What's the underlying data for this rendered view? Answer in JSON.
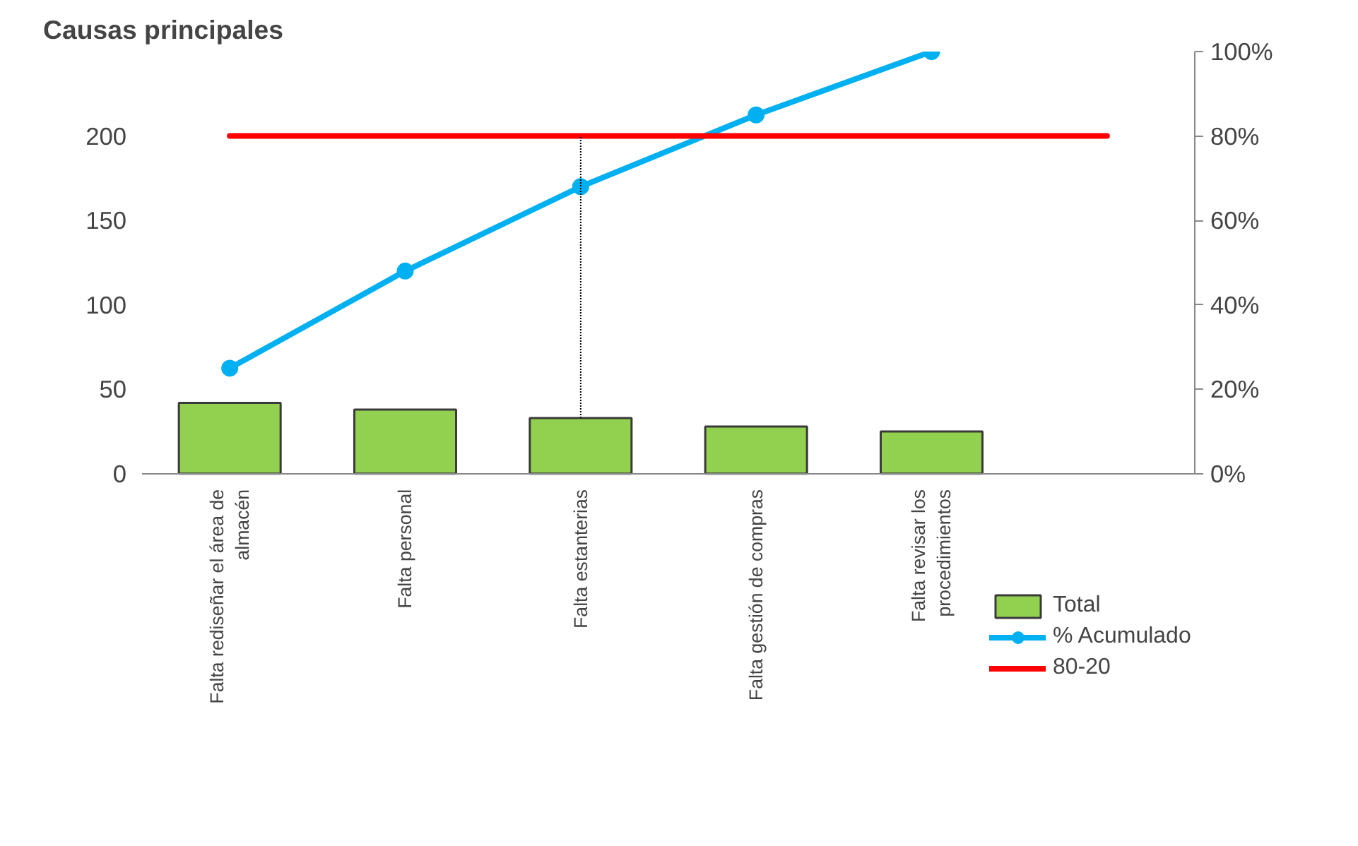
{
  "chart_data": {
    "type": "bar",
    "title": "Causas principales",
    "categories": [
      "Falta rediseñar el área de almacén",
      "Falta personal",
      "Falta estanterias",
      "Falta gestión de compras",
      "Falta revisar los procedimientos",
      null
    ],
    "series": [
      {
        "name": "Total",
        "color": "#92d050",
        "values": [
          42,
          38,
          33,
          28,
          25,
          null
        ]
      },
      {
        "name": "% Acumulado",
        "type": "line",
        "axis": "y2",
        "color": "#00b0f0",
        "marker": "circle",
        "values": [
          25,
          48,
          68,
          85,
          100,
          null
        ]
      },
      {
        "name": "80-20",
        "type": "line",
        "axis": "y2",
        "color": "#ff0000",
        "marker": "none",
        "values": [
          80,
          80,
          80,
          80,
          80,
          80
        ]
      }
    ],
    "ylim": [
      0,
      250
    ],
    "yticks": [
      0,
      50,
      100,
      150,
      200
    ],
    "y2lim": [
      0,
      100
    ],
    "y2ticks": [
      {
        "value": 0,
        "label": "0%"
      },
      {
        "value": 20,
        "label": "20%"
      },
      {
        "value": 40,
        "label": "40%"
      },
      {
        "value": 60,
        "label": "60%"
      },
      {
        "value": 80,
        "label": "80%"
      },
      {
        "value": 100,
        "label": "100%"
      }
    ],
    "ref_lines": [
      {
        "axis": "x",
        "value": "Falta estanterias",
        "color": "#000000",
        "line_style": "dotted"
      }
    ],
    "grid": false,
    "legend": "bottom right"
  }
}
